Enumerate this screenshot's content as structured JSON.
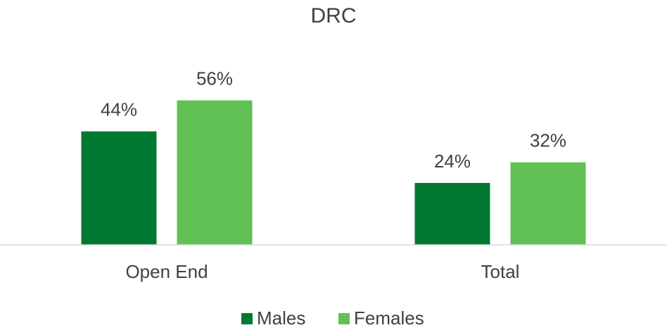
{
  "chart_data": {
    "type": "bar",
    "title": "DRC",
    "categories": [
      "Open End",
      "Total"
    ],
    "series": [
      {
        "name": "Males",
        "color": "#007a33",
        "values": [
          44,
          24
        ],
        "value_labels": [
          "44%",
          "24%"
        ]
      },
      {
        "name": "Females",
        "color": "#62c155",
        "values": [
          56,
          32
        ],
        "value_labels": [
          "56%",
          "32%"
        ]
      }
    ],
    "ylim": [
      0,
      60
    ]
  }
}
